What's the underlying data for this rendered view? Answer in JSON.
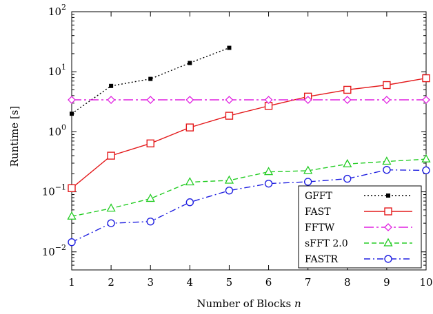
{
  "chart_data": {
    "type": "line",
    "xlabel": "Number of Blocks",
    "xlabel_var": "n",
    "ylabel": "Runtime [s]",
    "y_scale": "log",
    "xlim": [
      1,
      10
    ],
    "ylim": [
      0.005,
      100
    ],
    "x_ticks": [
      1,
      2,
      3,
      4,
      5,
      6,
      7,
      8,
      9,
      10
    ],
    "y_ticks": [
      {
        "value": 0.01,
        "base": "10",
        "exp": "−2"
      },
      {
        "value": 0.1,
        "base": "10",
        "exp": "−1"
      },
      {
        "value": 1,
        "base": "10",
        "exp": "0"
      },
      {
        "value": 10,
        "base": "10",
        "exp": "1"
      },
      {
        "value": 100,
        "base": "10",
        "exp": "2"
      }
    ],
    "grid": false,
    "legend_position": "bottom-right",
    "series": [
      {
        "name": "GFFT",
        "color": "#000000",
        "dash": "dot",
        "marker": "filled-square",
        "x": [
          1,
          2,
          3,
          4,
          5
        ],
        "values": [
          2.0,
          5.8,
          7.6,
          14.0,
          25.0
        ]
      },
      {
        "name": "FAST",
        "color": "#e41a1c",
        "dash": "solid",
        "marker": "square",
        "x": [
          1,
          2,
          3,
          4,
          5,
          6,
          7,
          8,
          9,
          10
        ],
        "values": [
          0.115,
          0.4,
          0.64,
          1.18,
          1.85,
          2.7,
          3.85,
          5.0,
          6.0,
          7.8
        ]
      },
      {
        "name": "FFTW",
        "color": "#e020e0",
        "dash": "dashdot-long",
        "marker": "diamond",
        "x": [
          1,
          2,
          3,
          4,
          5,
          6,
          7,
          8,
          9,
          10
        ],
        "values": [
          3.4,
          3.4,
          3.4,
          3.4,
          3.4,
          3.4,
          3.4,
          3.4,
          3.4,
          3.4
        ]
      },
      {
        "name": "sFFT 2.0",
        "color": "#22cc22",
        "dash": "dash",
        "marker": "triangle",
        "x": [
          1,
          2,
          3,
          4,
          5,
          6,
          7,
          8,
          9,
          10
        ],
        "values": [
          0.039,
          0.053,
          0.077,
          0.145,
          0.155,
          0.215,
          0.225,
          0.29,
          0.32,
          0.35
        ]
      },
      {
        "name": "FASTR",
        "color": "#1f1fe0",
        "dash": "dashdot",
        "marker": "circle",
        "x": [
          1,
          2,
          3,
          4,
          5,
          6,
          7,
          8,
          9,
          10
        ],
        "values": [
          0.0145,
          0.03,
          0.032,
          0.067,
          0.105,
          0.137,
          0.147,
          0.165,
          0.232,
          0.228
        ]
      }
    ]
  }
}
